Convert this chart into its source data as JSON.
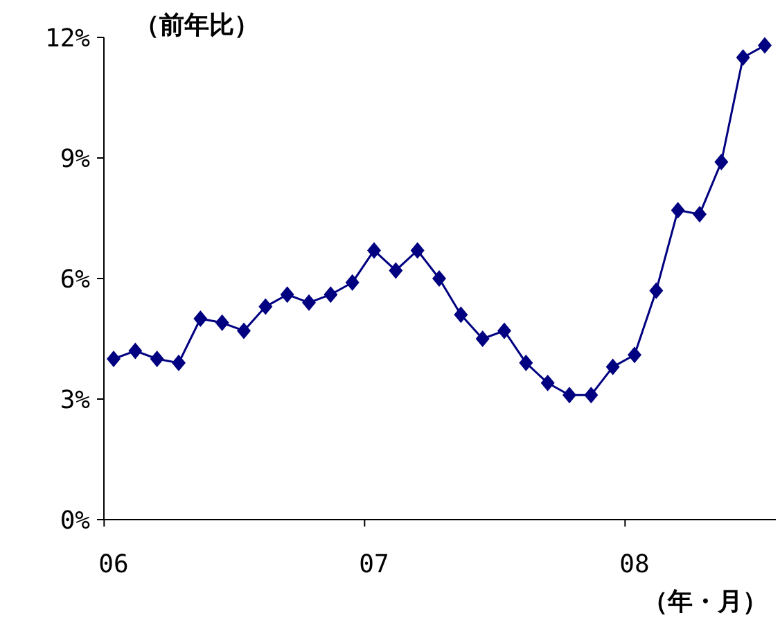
{
  "chart_data": {
    "type": "line",
    "subtitle": "（前年比）",
    "xlabel": "（年・月）",
    "categories": [
      "06",
      null,
      null,
      null,
      null,
      null,
      null,
      null,
      null,
      null,
      null,
      null,
      "07",
      null,
      null,
      null,
      null,
      null,
      null,
      null,
      null,
      null,
      null,
      null,
      "08",
      null,
      null,
      null,
      null,
      null,
      null
    ],
    "series": [
      {
        "color": "#000080",
        "values": [
          4.0,
          4.2,
          4.0,
          3.9,
          5.0,
          4.9,
          4.7,
          5.3,
          5.6,
          5.4,
          5.6,
          5.9,
          6.7,
          6.2,
          6.7,
          6.0,
          5.1,
          4.5,
          4.7,
          3.9,
          3.4,
          3.1,
          3.1,
          3.8,
          4.1,
          5.7,
          7.7,
          7.6,
          8.9,
          11.5,
          11.8
        ]
      }
    ],
    "ylim": [
      0,
      12
    ],
    "yticks": [
      {
        "value": 0,
        "label": "0%"
      },
      {
        "value": 3,
        "label": "3%"
      },
      {
        "value": 6,
        "label": "6%"
      },
      {
        "value": 9,
        "label": "9%"
      },
      {
        "value": 12,
        "label": "12%"
      }
    ],
    "grid": false,
    "marker": "diamond",
    "line_style": "solid"
  }
}
